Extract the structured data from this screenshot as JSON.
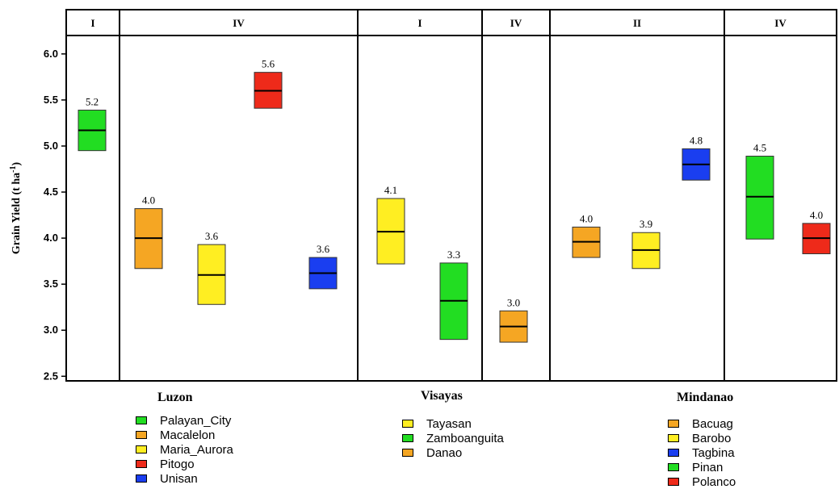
{
  "chart_data": {
    "type": "boxplot",
    "ylabel": "Grain Yield (t ha",
    "ylabel_superscript": "-1",
    "ylabel_suffix": ")",
    "ylim": [
      2.45,
      6.2
    ],
    "yticks": [
      "2.5",
      "3.0",
      "3.5",
      "4.0",
      "4.5",
      "5.0",
      "5.5",
      "6.0"
    ],
    "ytick_values": [
      2.5,
      3.0,
      3.5,
      4.0,
      4.5,
      5.0,
      5.5,
      6.0
    ],
    "panels": [
      {
        "label": "I"
      },
      {
        "label": "IV"
      },
      {
        "label": "I"
      },
      {
        "label": "IV"
      },
      {
        "label": "II"
      },
      {
        "label": "IV"
      }
    ],
    "regions": [
      {
        "name": "Luzon"
      },
      {
        "name": "Visayas"
      },
      {
        "name": "Mindanao"
      }
    ],
    "boxes": [
      {
        "site": "Palayan_City",
        "panel": 0,
        "low": 4.95,
        "median": 5.17,
        "high": 5.39,
        "label": "5.2",
        "color": "#22dd22"
      },
      {
        "site": "Macalelon",
        "panel": 1,
        "low": 3.67,
        "median": 4.0,
        "high": 4.32,
        "label": "4.0",
        "color": "#f5a623"
      },
      {
        "site": "Maria_Aurora",
        "panel": 1,
        "low": 3.28,
        "median": 3.6,
        "high": 3.93,
        "label": "3.6",
        "color": "#ffee22"
      },
      {
        "site": "Pitogo",
        "panel": 1,
        "low": 5.41,
        "median": 5.6,
        "high": 5.8,
        "label": "5.6",
        "color": "#ee2a1a"
      },
      {
        "site": "Unisan",
        "panel": 1,
        "low": 3.45,
        "median": 3.62,
        "high": 3.79,
        "label": "3.6",
        "color": "#1a3ef0"
      },
      {
        "site": "Tayasan",
        "panel": 2,
        "low": 3.72,
        "median": 4.07,
        "high": 4.43,
        "label": "4.1",
        "color": "#ffee22"
      },
      {
        "site": "Zamboanguita",
        "panel": 2,
        "low": 2.9,
        "median": 3.32,
        "high": 3.73,
        "label": "3.3",
        "color": "#22dd22"
      },
      {
        "site": "Danao",
        "panel": 3,
        "low": 2.87,
        "median": 3.04,
        "high": 3.21,
        "label": "3.0",
        "color": "#f5a623"
      },
      {
        "site": "Bacuag",
        "panel": 4,
        "low": 3.79,
        "median": 3.96,
        "high": 4.12,
        "label": "4.0",
        "color": "#f5a623"
      },
      {
        "site": "Barobo",
        "panel": 4,
        "low": 3.67,
        "median": 3.87,
        "high": 4.06,
        "label": "3.9",
        "color": "#ffee22"
      },
      {
        "site": "Tagbina",
        "panel": 4,
        "low": 4.63,
        "median": 4.8,
        "high": 4.97,
        "label": "4.8",
        "color": "#1a3ef0"
      },
      {
        "site": "Pinan",
        "panel": 5,
        "low": 3.99,
        "median": 4.45,
        "high": 4.89,
        "label": "4.5",
        "color": "#22dd22"
      },
      {
        "site": "Polanco",
        "panel": 5,
        "low": 3.83,
        "median": 4.0,
        "high": 4.16,
        "label": "4.0",
        "color": "#ee2a1a"
      }
    ],
    "legend": [
      {
        "region": "Luzon",
        "items": [
          {
            "name": "Palayan_City",
            "color": "#22dd22"
          },
          {
            "name": "Macalelon",
            "color": "#f5a623"
          },
          {
            "name": "Maria_Aurora",
            "color": "#ffee22"
          },
          {
            "name": "Pitogo",
            "color": "#ee2a1a"
          },
          {
            "name": "Unisan",
            "color": "#1a3ef0"
          }
        ]
      },
      {
        "region": "Visayas",
        "items": [
          {
            "name": "Tayasan",
            "color": "#ffee22"
          },
          {
            "name": "Zamboanguita",
            "color": "#22dd22"
          },
          {
            "name": "Danao",
            "color": "#f5a623"
          }
        ]
      },
      {
        "region": "Mindanao",
        "items": [
          {
            "name": "Bacuag",
            "color": "#f5a623"
          },
          {
            "name": "Barobo",
            "color": "#ffee22"
          },
          {
            "name": "Tagbina",
            "color": "#1a3ef0"
          },
          {
            "name": "Pinan",
            "color": "#22dd22"
          },
          {
            "name": "Polanco",
            "color": "#ee2a1a"
          }
        ]
      }
    ]
  }
}
